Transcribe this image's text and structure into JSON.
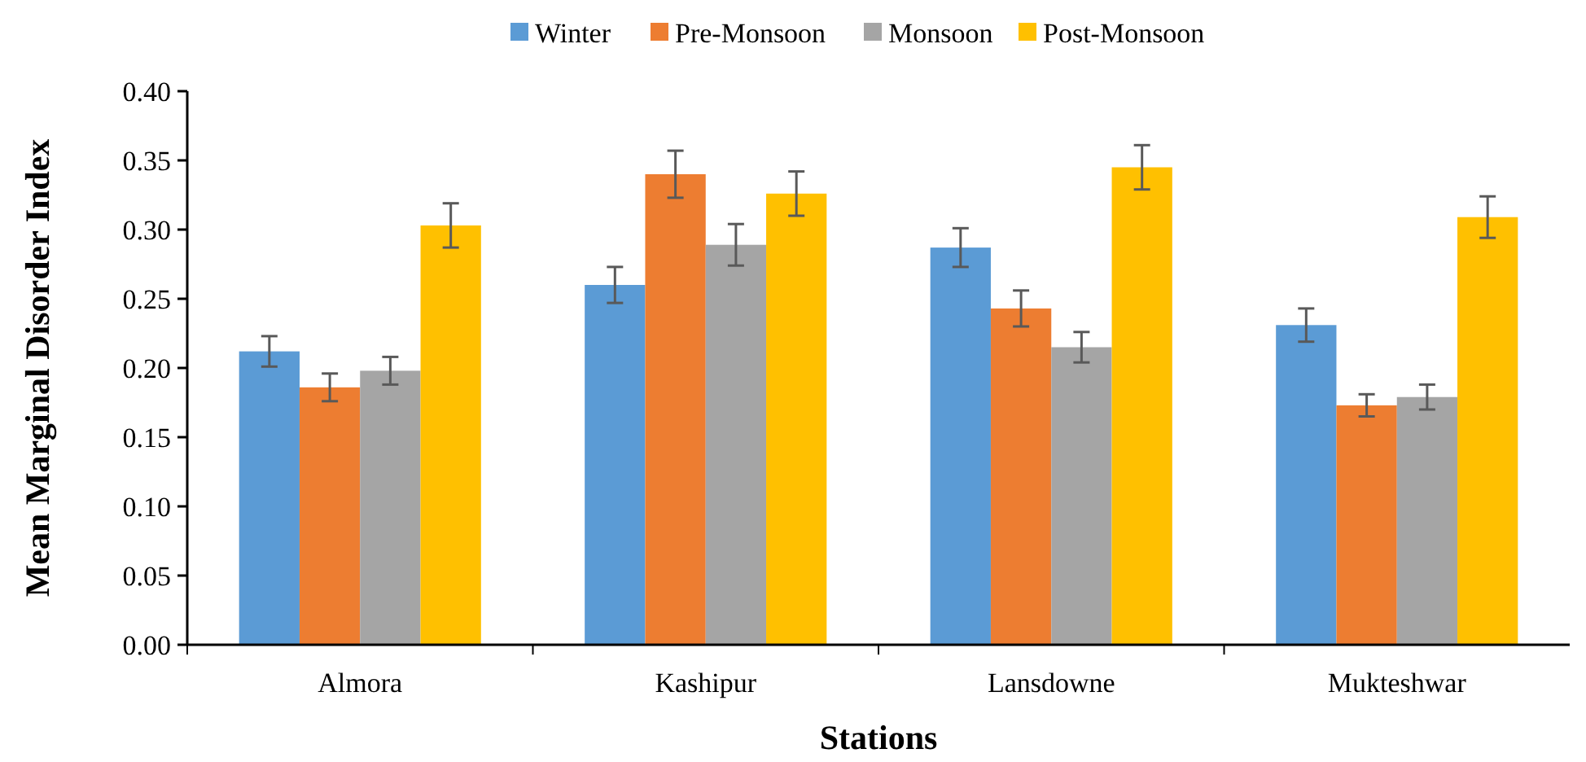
{
  "chart_data": {
    "type": "bar",
    "xlabel": "Stations",
    "ylabel": "Mean Marginal Disorder Index",
    "categories": [
      "Almora",
      "Kashipur",
      "Lansdowne",
      "Mukteshwar"
    ],
    "series": [
      {
        "name": "Winter",
        "color": "#5b9bd5",
        "values": [
          0.212,
          0.26,
          0.287,
          0.231
        ],
        "errors": [
          0.011,
          0.013,
          0.014,
          0.012
        ]
      },
      {
        "name": "Pre-Monsoon",
        "color": "#ed7d31",
        "values": [
          0.186,
          0.34,
          0.243,
          0.173
        ],
        "errors": [
          0.01,
          0.017,
          0.013,
          0.008
        ]
      },
      {
        "name": "Monsoon",
        "color": "#a5a5a5",
        "values": [
          0.198,
          0.289,
          0.215,
          0.179
        ],
        "errors": [
          0.01,
          0.015,
          0.011,
          0.009
        ]
      },
      {
        "name": "Post-Monsoon",
        "color": "#ffc000",
        "values": [
          0.303,
          0.326,
          0.345,
          0.309
        ],
        "errors": [
          0.016,
          0.016,
          0.016,
          0.015
        ]
      }
    ],
    "ylim": [
      0,
      0.4
    ],
    "yticks": [
      {
        "value": 0,
        "label": "0.00"
      },
      {
        "value": 0.05,
        "label": "0.05"
      },
      {
        "value": 0.1,
        "label": "0.10"
      },
      {
        "value": 0.15,
        "label": "0.15"
      },
      {
        "value": 0.2,
        "label": "0.20"
      },
      {
        "value": 0.25,
        "label": "0.25"
      },
      {
        "value": 0.3,
        "label": "0.30"
      },
      {
        "value": 0.35,
        "label": "0.35"
      },
      {
        "value": 0.4,
        "label": "0.40"
      }
    ],
    "legend": "top",
    "grid": false
  }
}
